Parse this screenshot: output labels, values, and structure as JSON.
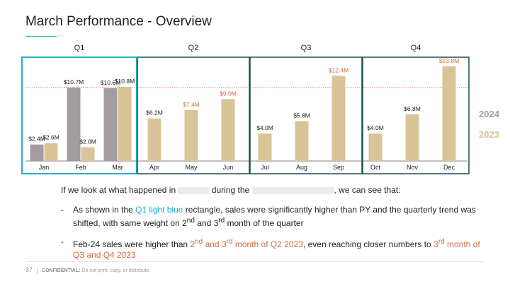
{
  "title": "March Performance - Overview",
  "chart_data": {
    "type": "bar",
    "groups": [
      "Q1",
      "Q2",
      "Q3",
      "Q4"
    ],
    "categories": [
      "Jan",
      "Feb",
      "Mar",
      "Apr",
      "May",
      "Jun",
      "Jul",
      "Aug",
      "Sep",
      "Oct",
      "Nov",
      "Dec"
    ],
    "series": [
      {
        "name": "2024",
        "values": [
          2.4,
          10.7,
          10.6,
          null,
          null,
          null,
          null,
          null,
          null,
          null,
          null,
          null
        ]
      },
      {
        "name": "2023",
        "values": [
          2.6,
          2.0,
          10.8,
          6.2,
          7.4,
          9.0,
          4.0,
          5.8,
          12.4,
          4.0,
          6.8,
          13.8
        ]
      }
    ],
    "labels_2024": [
      "$2.4M",
      "$10.7M",
      "$10.6M"
    ],
    "labels_2023": [
      "$2.6M",
      "$2.0M",
      "$10.8M",
      "$6.2M",
      "$7.4M",
      "$9.0M",
      "$4.0M",
      "$5.8M",
      "$12.4M",
      "$4.0M",
      "$6.8M",
      "$13.8M"
    ],
    "highlight_labels": [
      "$7.4M",
      "$9.0M",
      "$12.4M",
      "$13.8M"
    ],
    "reference_line_value": 10.7,
    "ylim": [
      0,
      14.6
    ],
    "legend_placement": "right",
    "colors": {
      "2024": "#a39ca0",
      "2023": "#d9c498",
      "highlight_label": "#cf6a3a",
      "normal_label": "#222222",
      "q1_box": "#29b0c7",
      "quarter_box": "#1f4e4e",
      "ref_line": "#c9706a"
    }
  },
  "body": {
    "intro_before": "If we look at what happened in ",
    "intro_mid": " during the ",
    "intro_after": ", we can see that:",
    "b1_pre": "As shown in the ",
    "b1_hl": "Q1 light blue",
    "b1_mid": " rectangle, sales were significantly higher than PY and the quarterly trend was shifted, with same weight on 2",
    "b1_sup1": "nd",
    "b1_and": " and 3",
    "b1_sup2": "rd",
    "b1_end": " month of the quarter",
    "b2_pre": "Feb-24 sales were higher than ",
    "b2_hl1": "2",
    "b2_hl1_sup": "nd",
    "b2_hl1_and": " and 3",
    "b2_hl1_sup2": "rd",
    "b2_hl1_end": " month of Q2 2023",
    "b2_mid": ", even reaching closer numbers to ",
    "b2_hl2": "3",
    "b2_hl2_sup": "rd",
    "b2_hl2_end": " month of Q3 and Q4 2023"
  },
  "footer": {
    "page": "37",
    "confidential": "CONFIDENTIAL:",
    "notice": "Do not print, copy, or distribute."
  }
}
